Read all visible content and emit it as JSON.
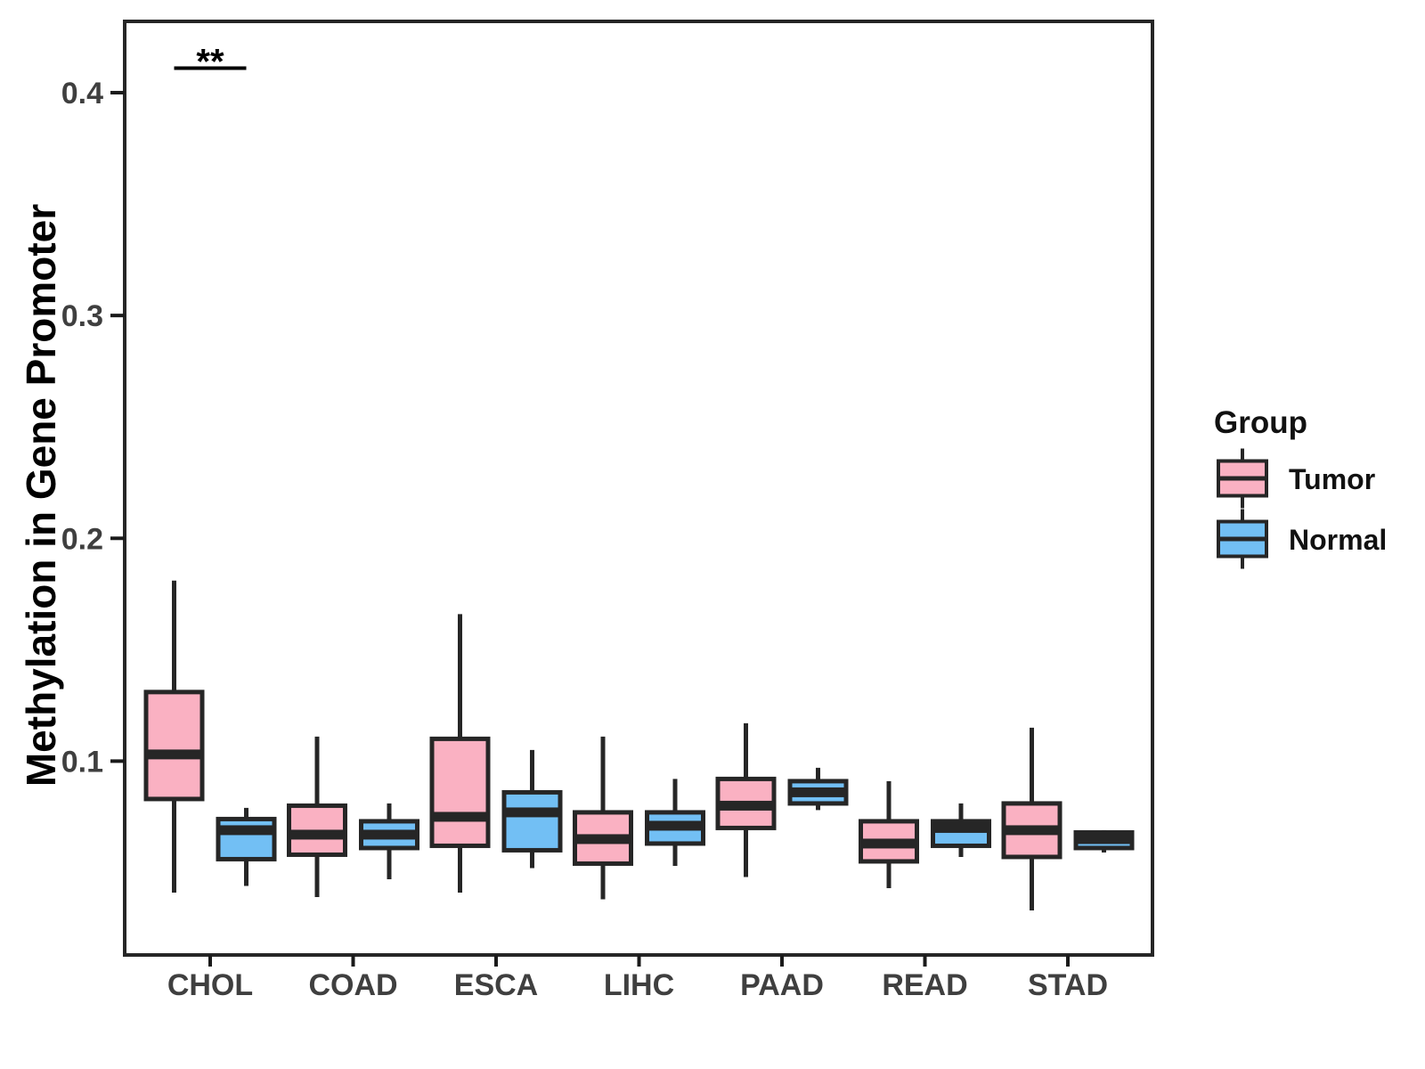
{
  "figure": {
    "background": "#FFFFFF",
    "panel_border_color": "#262626",
    "box_outline_color": "#262626",
    "tick_color": "#1A1A1A",
    "axis_text_color": "#3F3F3F",
    "axis_title_color": "#000000",
    "significance_color": "#000000"
  },
  "legend": {
    "title": "Group",
    "items": [
      {
        "label": "Tumor",
        "color": "#FAB1C2"
      },
      {
        "label": "Normal",
        "color": "#72BFF4"
      }
    ]
  },
  "chart_data": {
    "type": "boxplot",
    "title": "",
    "xlabel": "",
    "ylabel": "Methylation in Gene Promoter",
    "grid": false,
    "legend_position": "right",
    "categories": [
      "CHOL",
      "COAD",
      "ESCA",
      "LIHC",
      "PAAD",
      "READ",
      "STAD"
    ],
    "y_ticks": [
      {
        "value": 0.1,
        "label": "0.1"
      },
      {
        "value": 0.2,
        "label": "0.2"
      },
      {
        "value": 0.3,
        "label": "0.3"
      },
      {
        "value": 0.4,
        "label": "0.4"
      }
    ],
    "ylim": [
      0.013,
      0.432
    ],
    "series": [
      {
        "name": "Tumor",
        "color": "#FAB1C2",
        "boxes": [
          {
            "category": "CHOL",
            "whisker_low": 0.041,
            "q1": 0.083,
            "median": 0.103,
            "q3": 0.131,
            "whisker_high": 0.181
          },
          {
            "category": "COAD",
            "whisker_low": 0.039,
            "q1": 0.058,
            "median": 0.067,
            "q3": 0.08,
            "whisker_high": 0.111
          },
          {
            "category": "ESCA",
            "whisker_low": 0.041,
            "q1": 0.062,
            "median": 0.075,
            "q3": 0.11,
            "whisker_high": 0.166
          },
          {
            "category": "LIHC",
            "whisker_low": 0.038,
            "q1": 0.054,
            "median": 0.065,
            "q3": 0.077,
            "whisker_high": 0.111
          },
          {
            "category": "PAAD",
            "whisker_low": 0.048,
            "q1": 0.07,
            "median": 0.08,
            "q3": 0.092,
            "whisker_high": 0.117
          },
          {
            "category": "READ",
            "whisker_low": 0.043,
            "q1": 0.055,
            "median": 0.063,
            "q3": 0.073,
            "whisker_high": 0.091
          },
          {
            "category": "STAD",
            "whisker_low": 0.033,
            "q1": 0.057,
            "median": 0.069,
            "q3": 0.081,
            "whisker_high": 0.115
          }
        ]
      },
      {
        "name": "Normal",
        "color": "#72BFF4",
        "boxes": [
          {
            "category": "CHOL",
            "whisker_low": 0.044,
            "q1": 0.056,
            "median": 0.069,
            "q3": 0.074,
            "whisker_high": 0.079
          },
          {
            "category": "COAD",
            "whisker_low": 0.047,
            "q1": 0.061,
            "median": 0.067,
            "q3": 0.073,
            "whisker_high": 0.081
          },
          {
            "category": "ESCA",
            "whisker_low": 0.052,
            "q1": 0.06,
            "median": 0.077,
            "q3": 0.086,
            "whisker_high": 0.105
          },
          {
            "category": "LIHC",
            "whisker_low": 0.053,
            "q1": 0.063,
            "median": 0.071,
            "q3": 0.077,
            "whisker_high": 0.092
          },
          {
            "category": "PAAD",
            "whisker_low": 0.078,
            "q1": 0.081,
            "median": 0.086,
            "q3": 0.091,
            "whisker_high": 0.097
          },
          {
            "category": "READ",
            "whisker_low": 0.057,
            "q1": 0.062,
            "median": 0.07,
            "q3": 0.073,
            "whisker_high": 0.081
          },
          {
            "category": "STAD",
            "whisker_low": 0.059,
            "q1": 0.061,
            "median": 0.065,
            "q3": 0.068,
            "whisker_high": 0.069
          }
        ]
      }
    ],
    "annotations": [
      {
        "text": "**",
        "category": "CHOL",
        "y": 0.411
      }
    ]
  }
}
